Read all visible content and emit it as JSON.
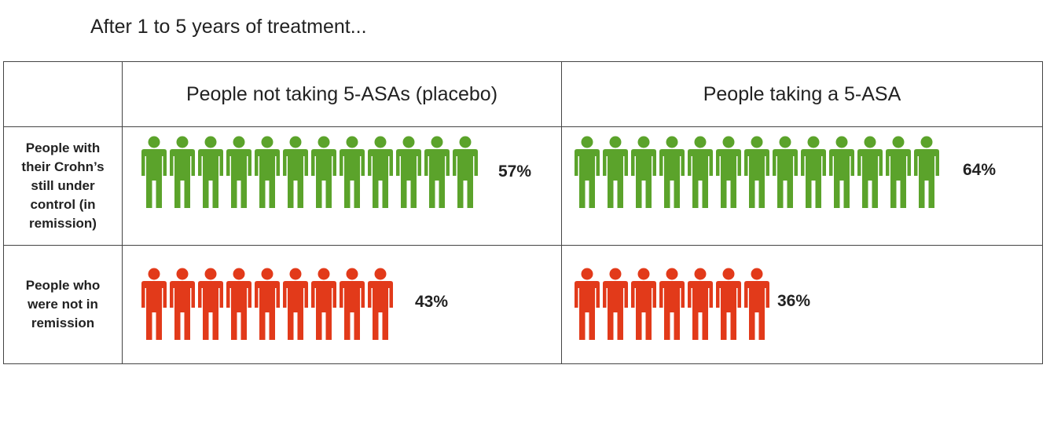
{
  "title": "After 1 to 5 years of treatment...",
  "colors": {
    "remission": "#5ba32b",
    "not_remission": "#e23a1a"
  },
  "icon": "person-icon",
  "table": {
    "columns": [
      "People not taking 5-ASAs (placebo)",
      "People taking a 5-ASA"
    ],
    "rows": [
      {
        "label": "People with their Crohn’s still under control (in remission)",
        "values": [
          "57%",
          "64%"
        ]
      },
      {
        "label": "People who were not in remission",
        "values": [
          "43%",
          "36%"
        ]
      }
    ]
  },
  "chart_data": {
    "type": "table",
    "title": "After 1 to 5 years of treatment...",
    "columns": [
      "People not taking 5-ASAs (placebo)",
      "People taking a 5-ASA"
    ],
    "series": [
      {
        "name": "People with their Crohn’s still under control (in remission)",
        "values": [
          57,
          64
        ],
        "icon_counts": [
          12,
          13
        ]
      },
      {
        "name": "People who were not in remission",
        "values": [
          43,
          36
        ],
        "icon_counts": [
          9,
          7
        ]
      }
    ],
    "unit": "%"
  }
}
